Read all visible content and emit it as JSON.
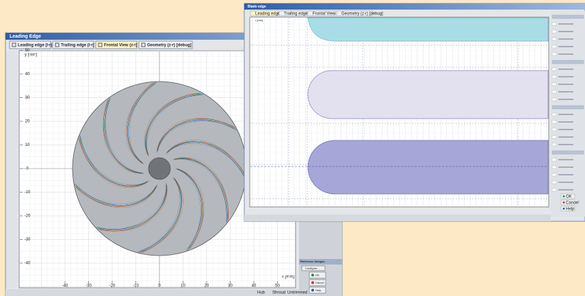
{
  "back_window": {
    "title": "Leading Edge",
    "tabs": [
      "Leading edge (l-r)",
      "Trailing edge (l-r)",
      "Frontal View (z-r)",
      "Geometry (z-r) [debug]"
    ],
    "y_axis_label": "y [mm]",
    "x_axis_label": "x [mm]",
    "xticks": [
      -40,
      -30,
      -20,
      -10,
      0,
      10,
      20,
      30,
      40,
      50
    ],
    "yticks": [
      50,
      40,
      30,
      20,
      10,
      0,
      -10,
      -20,
      -30,
      -40
    ],
    "status": [
      "Hub",
      "Shroud",
      "Untrimmed"
    ],
    "panel": {
      "title": "Reference designs",
      "configure": "Configure...",
      "buttons": [
        "OK",
        "Cancel",
        "Help"
      ]
    }
  },
  "front_window": {
    "title": "Blade edge",
    "tabs": [
      "Leading edge (l-r)",
      "Trailing edge (l-r)",
      "Frontal View (z-r)",
      "Geometry (z-r) [debug]"
    ],
    "y_axis_label": "r [mm]",
    "buttons": [
      "OK",
      "Cancel",
      "Help"
    ]
  }
}
